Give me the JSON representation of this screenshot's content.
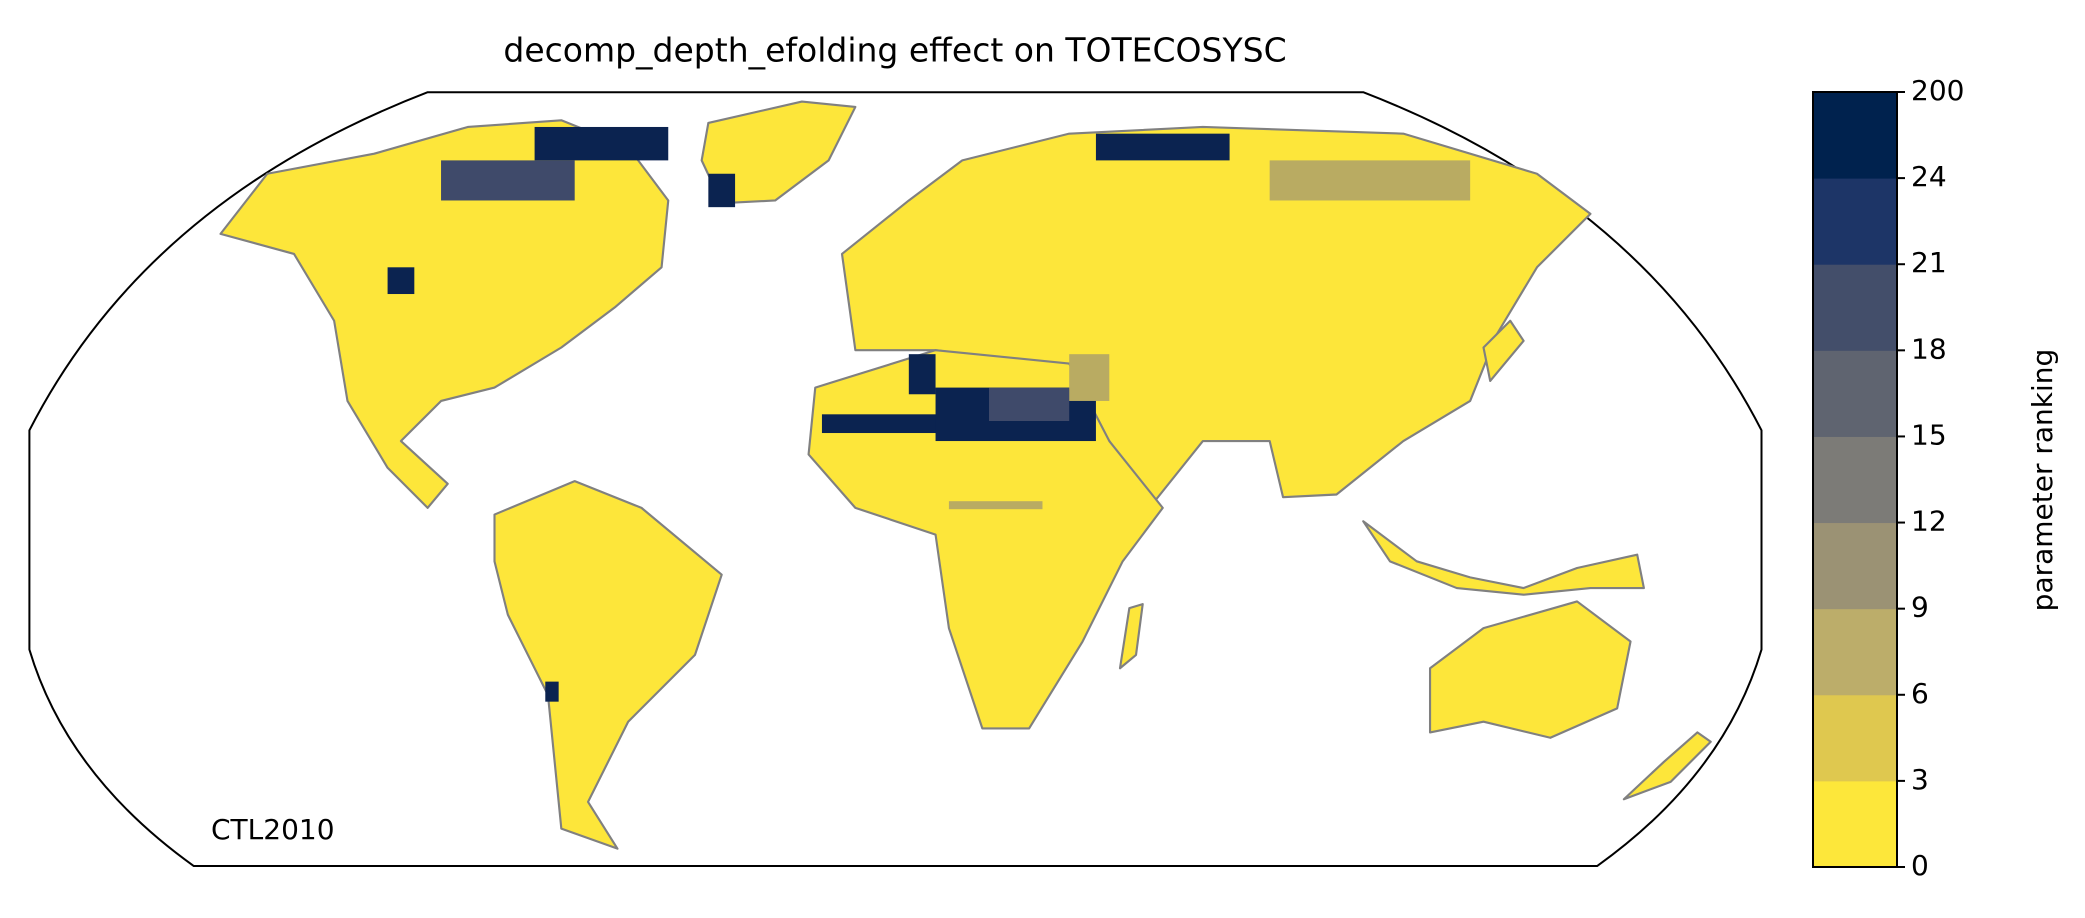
{
  "chart_data": {
    "type": "map",
    "title": "decomp_depth_efolding effect on TOTECOSYSC",
    "annotation": "CTL2010",
    "colorbar": {
      "label": "parameter ranking",
      "ticks": [
        0,
        3,
        6,
        9,
        12,
        15,
        18,
        21,
        24,
        200
      ],
      "colors": [
        "#fde73a",
        "#dfc84f",
        "#bcad6a",
        "#9b9274",
        "#7c7b77",
        "#5f6470",
        "#434e6a",
        "#1d3567",
        "#00224e"
      ]
    }
  }
}
